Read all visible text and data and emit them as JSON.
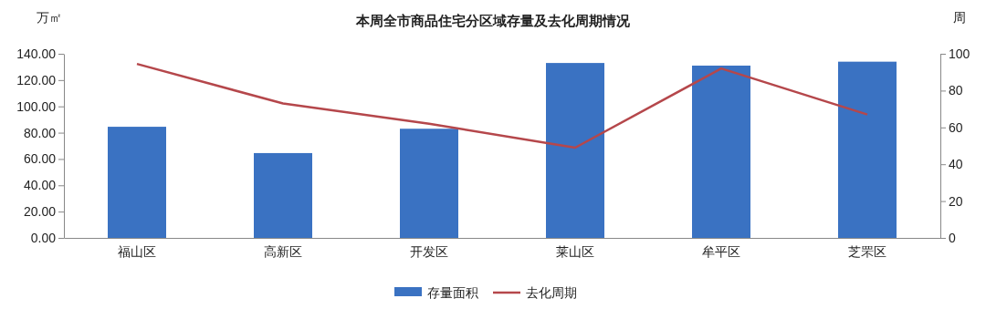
{
  "chart_data": {
    "type": "bar",
    "title": "本周全市商品住宅分区域存量及去化周期情况",
    "ylabel": "万㎡",
    "y2label": "周",
    "categories": [
      "福山区",
      "高新区",
      "开发区",
      "莱山区",
      "牟平区",
      "芝罘区"
    ],
    "series": [
      {
        "name": "存量面积",
        "color": "#3a72c2",
        "values": [
          84.5,
          64.5,
          83,
          133,
          131,
          134
        ]
      },
      {
        "name": "去化周期",
        "type": "line",
        "axis": "y2",
        "color": "#b5474b",
        "values": [
          94.5,
          73,
          62,
          49,
          92,
          67
        ]
      }
    ],
    "ylim": [
      0,
      140
    ],
    "yticks": [
      {
        "value": 0,
        "label": "0.00"
      },
      {
        "value": 20,
        "label": "20.00"
      },
      {
        "value": 40,
        "label": "40.00"
      },
      {
        "value": 60,
        "label": "60.00"
      },
      {
        "value": 80,
        "label": "80.00"
      },
      {
        "value": 100,
        "label": "100.00"
      },
      {
        "value": 120,
        "label": "120.00"
      },
      {
        "value": 140,
        "label": "140.00"
      }
    ],
    "y2lim": [
      0,
      100
    ],
    "y2ticks": [
      0,
      20,
      40,
      60,
      80,
      100
    ],
    "legend": "bottom",
    "grid": false
  }
}
